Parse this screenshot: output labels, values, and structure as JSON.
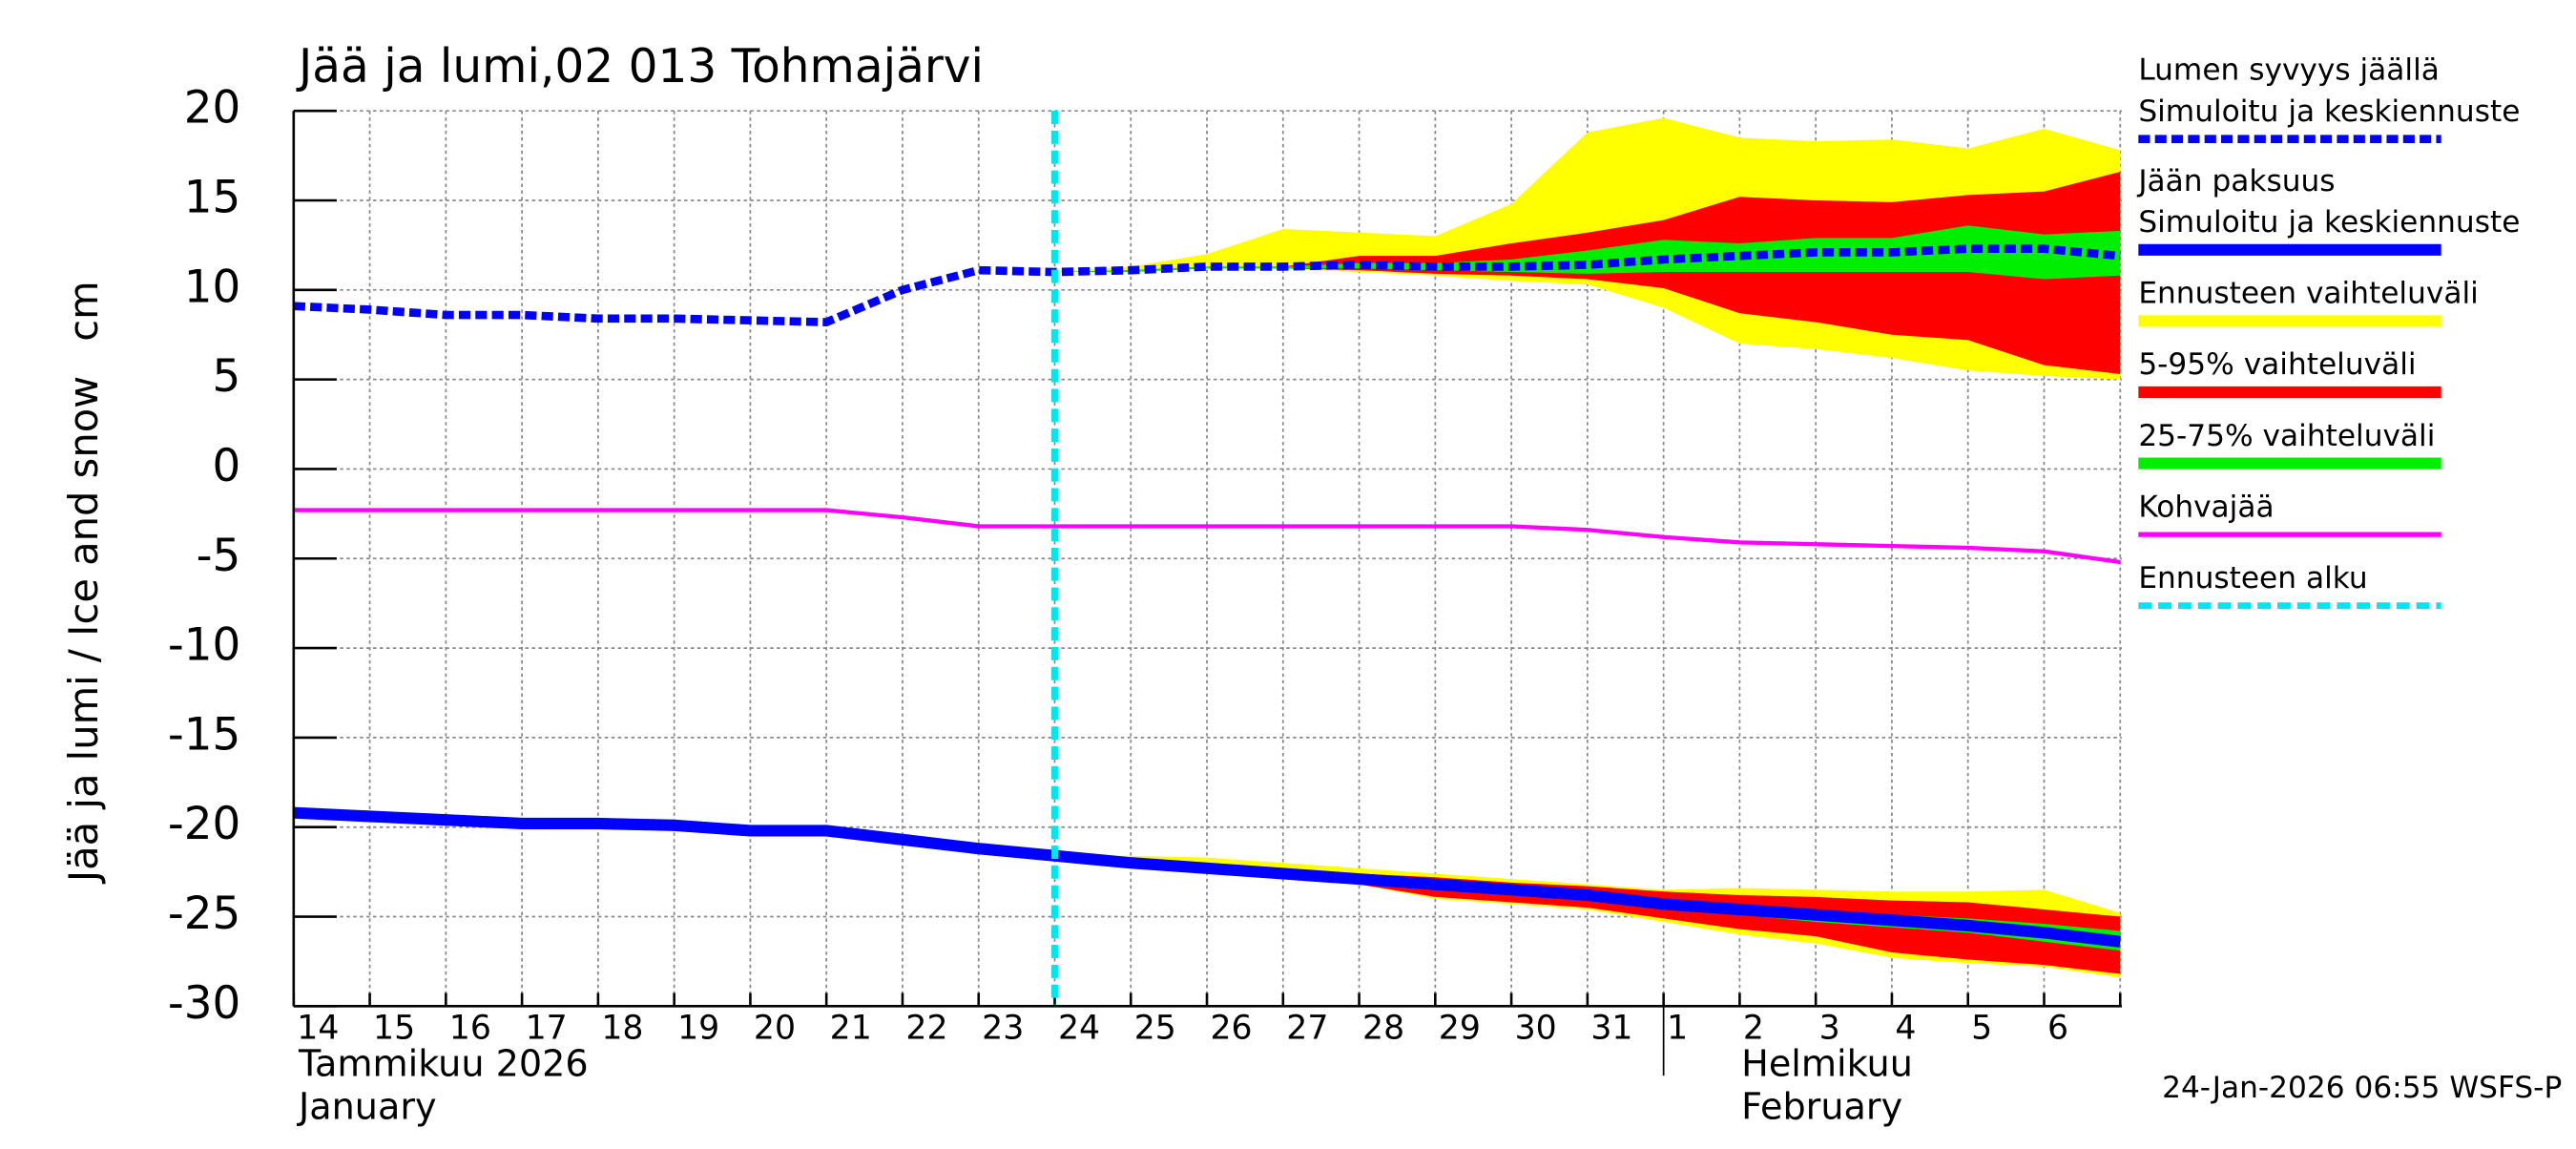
{
  "chart_data": {
    "type": "line",
    "title": "Jää ja lumi,02 013 Tohmajärvi",
    "y_label": "Jää ja lumi / Ice and snow",
    "y_unit": "cm",
    "ylim": [
      -30,
      20
    ],
    "yticks": [
      -30,
      -25,
      -20,
      -15,
      -10,
      -5,
      0,
      5,
      10,
      15,
      20
    ],
    "grid": true,
    "categories": [
      "14",
      "15",
      "16",
      "17",
      "18",
      "19",
      "20",
      "21",
      "22",
      "23",
      "24",
      "25",
      "26",
      "27",
      "28",
      "29",
      "30",
      "31",
      "1",
      "2",
      "3",
      "4",
      "5",
      "6",
      null
    ],
    "month_labels": [
      [
        "Tammikuu  2026",
        "January"
      ],
      [
        "Helmikuu",
        "February"
      ]
    ],
    "timestamp": "24-Jan-2026 06:55 WSFS-P",
    "bands": [
      {
        "name": "Ennusteen vaihteluväli",
        "color": "#ffff00",
        "snow_upper": [
          null,
          null,
          null,
          null,
          null,
          null,
          null,
          null,
          null,
          null,
          11.0,
          11.3,
          12.0,
          13.4,
          13.2,
          13.0,
          14.8,
          18.8,
          19.6,
          18.5,
          18.3,
          18.4,
          17.9,
          19.0,
          17.8
        ],
        "snow_lower": [
          null,
          null,
          null,
          null,
          null,
          null,
          null,
          null,
          null,
          null,
          11.0,
          11.0,
          11.2,
          11.2,
          11.0,
          10.8,
          10.5,
          10.3,
          9.0,
          7.0,
          6.7,
          6.2,
          5.5,
          5.2,
          5.0
        ],
        "ice_upper": [
          null,
          null,
          null,
          null,
          null,
          null,
          null,
          null,
          null,
          null,
          -21.6,
          -21.6,
          -21.7,
          -22.0,
          -22.3,
          -22.6,
          -22.9,
          -23.2,
          -23.5,
          -23.4,
          -23.5,
          -23.6,
          -23.6,
          -23.5,
          -24.8
        ],
        "ice_lower": [
          null,
          null,
          null,
          null,
          null,
          null,
          null,
          null,
          null,
          null,
          -21.6,
          -22.0,
          -22.3,
          -22.6,
          -23.2,
          -24.0,
          -24.3,
          -24.6,
          -25.3,
          -26.0,
          -26.5,
          -27.3,
          -27.6,
          -27.8,
          -28.4
        ]
      },
      {
        "name": "5-95% vaihteluväli",
        "color": "#ff0000",
        "snow_upper": [
          null,
          null,
          null,
          null,
          null,
          null,
          null,
          null,
          null,
          null,
          11.0,
          11.1,
          11.3,
          11.3,
          11.9,
          11.9,
          12.6,
          13.2,
          13.9,
          15.2,
          15.0,
          14.9,
          15.3,
          15.5,
          16.6
        ],
        "snow_lower": [
          null,
          null,
          null,
          null,
          null,
          null,
          null,
          null,
          null,
          null,
          11.0,
          11.0,
          11.2,
          11.2,
          11.1,
          10.9,
          10.8,
          10.6,
          10.1,
          8.7,
          8.2,
          7.5,
          7.2,
          5.8,
          5.3
        ],
        "ice_upper": [
          null,
          null,
          null,
          null,
          null,
          null,
          null,
          null,
          null,
          null,
          -21.6,
          -21.8,
          -22.0,
          -22.3,
          -22.6,
          -22.8,
          -23.1,
          -23.3,
          -23.6,
          -23.8,
          -23.9,
          -24.1,
          -24.2,
          -24.6,
          -25.0
        ],
        "ice_lower": [
          null,
          null,
          null,
          null,
          null,
          null,
          null,
          null,
          null,
          null,
          -21.6,
          -22.0,
          -22.3,
          -22.6,
          -23.2,
          -23.9,
          -24.2,
          -24.5,
          -25.1,
          -25.7,
          -26.1,
          -27.0,
          -27.4,
          -27.7,
          -28.2
        ]
      },
      {
        "name": "25-75% vaihteluväli",
        "color": "#00ee00",
        "snow_upper": [
          null,
          null,
          null,
          null,
          null,
          null,
          null,
          null,
          null,
          null,
          11.0,
          11.1,
          11.3,
          11.3,
          11.5,
          11.5,
          11.7,
          12.2,
          12.8,
          12.6,
          12.9,
          12.9,
          13.6,
          13.1,
          13.3
        ],
        "snow_lower": [
          null,
          null,
          null,
          null,
          null,
          null,
          null,
          null,
          null,
          null,
          11.0,
          11.0,
          11.2,
          11.2,
          11.2,
          11.1,
          11.0,
          10.9,
          11.0,
          11.0,
          11.0,
          11.0,
          11.0,
          10.6,
          10.8
        ],
        "ice_upper": [
          null,
          null,
          null,
          null,
          null,
          null,
          null,
          null,
          null,
          null,
          -21.6,
          -21.9,
          -22.2,
          -22.5,
          -22.8,
          -23.1,
          -23.4,
          -23.7,
          -24.1,
          -24.4,
          -24.6,
          -24.9,
          -25.1,
          -25.4,
          -25.8
        ],
        "ice_lower": [
          null,
          null,
          null,
          null,
          null,
          null,
          null,
          null,
          null,
          null,
          -21.6,
          -22.0,
          -22.3,
          -22.6,
          -23.0,
          -23.4,
          -23.7,
          -24.0,
          -24.5,
          -24.9,
          -25.3,
          -25.6,
          -25.9,
          -26.4,
          -26.9
        ]
      }
    ],
    "series": [
      {
        "name": "Lumen syvyys jäällä",
        "subname": "Simuloitu ja keskiennuste",
        "color": "#0000ff",
        "dashed": true,
        "values": [
          9.1,
          8.9,
          8.6,
          8.6,
          8.4,
          8.4,
          8.3,
          8.2,
          10.0,
          11.1,
          11.0,
          11.1,
          11.3,
          11.3,
          11.4,
          11.3,
          11.3,
          11.4,
          11.7,
          11.9,
          12.1,
          12.1,
          12.3,
          12.3,
          11.9
        ]
      },
      {
        "name": "Jään paksuus",
        "subname": "Simuloitu ja keskiennuste",
        "color": "#0000ff",
        "dashed": false,
        "values": [
          -19.2,
          -19.4,
          -19.6,
          -19.8,
          -19.8,
          -19.9,
          -20.2,
          -20.2,
          -20.7,
          -21.2,
          -21.6,
          -22.0,
          -22.3,
          -22.6,
          -22.9,
          -23.2,
          -23.5,
          -23.8,
          -24.3,
          -24.6,
          -24.9,
          -25.2,
          -25.5,
          -25.9,
          -26.4
        ]
      },
      {
        "name": "Kohvajää",
        "color": "#ff00ff",
        "dashed": false,
        "thin": true,
        "values": [
          -2.3,
          -2.3,
          -2.3,
          -2.3,
          -2.3,
          -2.3,
          -2.3,
          -2.3,
          -2.7,
          -3.2,
          -3.2,
          -3.2,
          -3.2,
          -3.2,
          -3.2,
          -3.2,
          -3.2,
          -3.4,
          -3.8,
          -4.1,
          -4.2,
          -4.3,
          -4.4,
          -4.6,
          -5.2
        ]
      }
    ],
    "forecast_start": {
      "name": "Ennusteen alku",
      "color": "#00e5ee",
      "x": 10
    }
  }
}
